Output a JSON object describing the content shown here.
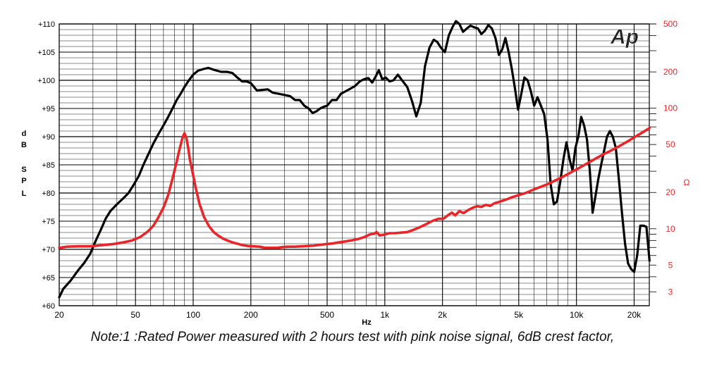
{
  "chart_data": {
    "type": "line",
    "x_scale": "log",
    "xlim": [
      20,
      24000
    ],
    "ylim": [
      60,
      110
    ],
    "y2_scale": "log",
    "y2lim": [
      2.3,
      500
    ],
    "x_ticks": [
      "20",
      "50",
      "100",
      "200",
      "500",
      "1k",
      "2k",
      "5k",
      "10k",
      "20k"
    ],
    "x_tick_values": [
      20,
      50,
      100,
      200,
      500,
      1000,
      2000,
      5000,
      10000,
      20000
    ],
    "y_ticks": [
      "+60",
      "+65",
      "+70",
      "+75",
      "+80",
      "+85",
      "+90",
      "+95",
      "+100",
      "+105",
      "+110"
    ],
    "y2_ticks": [
      "3",
      "5",
      "10",
      "20",
      "50",
      "100",
      "200",
      "500"
    ],
    "xlabel": "Hz",
    "ylabel": "dB SPL",
    "ylabel_letters": [
      "d",
      "B",
      "S",
      "P",
      "L"
    ],
    "y2label": "Ω",
    "logo": "Ap",
    "grid": true,
    "colors": {
      "spl": "#000000",
      "impedance": "#e8262a",
      "grid": "#000000",
      "right_axis_text": "#e8262a"
    },
    "series": [
      {
        "axis": "left",
        "color": "#000000",
        "points": [
          [
            20,
            61.5
          ],
          [
            21,
            63
          ],
          [
            23,
            64.5
          ],
          [
            25,
            66.2
          ],
          [
            27,
            67.6
          ],
          [
            29,
            69.2
          ],
          [
            31,
            71.5
          ],
          [
            33,
            73.5
          ],
          [
            35,
            75.5
          ],
          [
            37,
            76.8
          ],
          [
            40,
            78
          ],
          [
            43,
            79
          ],
          [
            46,
            80
          ],
          [
            49,
            81.5
          ],
          [
            52,
            83
          ],
          [
            55,
            85
          ],
          [
            58,
            86.7
          ],
          [
            62,
            88.8
          ],
          [
            66,
            90.5
          ],
          [
            70,
            92
          ],
          [
            74,
            93.5
          ],
          [
            78,
            95
          ],
          [
            82,
            96.5
          ],
          [
            86,
            97.6
          ],
          [
            90,
            98.8
          ],
          [
            95,
            100
          ],
          [
            100,
            101
          ],
          [
            106,
            101.7
          ],
          [
            113,
            102
          ],
          [
            120,
            102.2
          ],
          [
            130,
            101.8
          ],
          [
            140,
            101.5
          ],
          [
            150,
            101.5
          ],
          [
            160,
            101.3
          ],
          [
            170,
            100.5
          ],
          [
            180,
            99.8
          ],
          [
            190,
            99.8
          ],
          [
            200,
            99.5
          ],
          [
            215,
            98.2
          ],
          [
            230,
            98.3
          ],
          [
            245,
            98.4
          ],
          [
            260,
            97.8
          ],
          [
            280,
            97.6
          ],
          [
            300,
            97.4
          ],
          [
            320,
            97.2
          ],
          [
            340,
            96.5
          ],
          [
            360,
            96.5
          ],
          [
            380,
            95.5
          ],
          [
            400,
            95
          ],
          [
            420,
            94.2
          ],
          [
            440,
            94.5
          ],
          [
            460,
            95
          ],
          [
            480,
            95.3
          ],
          [
            500,
            95.5
          ],
          [
            530,
            96.5
          ],
          [
            560,
            96.5
          ],
          [
            590,
            97.6
          ],
          [
            620,
            98
          ],
          [
            660,
            98.5
          ],
          [
            700,
            99
          ],
          [
            740,
            99.8
          ],
          [
            780,
            100.2
          ],
          [
            820,
            100.4
          ],
          [
            860,
            99.6
          ],
          [
            900,
            100.8
          ],
          [
            930,
            101.8
          ],
          [
            970,
            100.2
          ],
          [
            1010,
            100.5
          ],
          [
            1060,
            99.8
          ],
          [
            1110,
            100
          ],
          [
            1170,
            101
          ],
          [
            1230,
            100
          ],
          [
            1310,
            98.8
          ],
          [
            1390,
            96.2
          ],
          [
            1460,
            93.6
          ],
          [
            1540,
            96
          ],
          [
            1620,
            102.5
          ],
          [
            1710,
            105.8
          ],
          [
            1800,
            107.2
          ],
          [
            1880,
            106.8
          ],
          [
            1960,
            105.8
          ],
          [
            2060,
            105
          ],
          [
            2160,
            108
          ],
          [
            2260,
            109.5
          ],
          [
            2350,
            110.5
          ],
          [
            2450,
            110
          ],
          [
            2560,
            108.6
          ],
          [
            2680,
            109.2
          ],
          [
            2800,
            109.7
          ],
          [
            2930,
            109.4
          ],
          [
            3060,
            109.2
          ],
          [
            3190,
            108.2
          ],
          [
            3330,
            108.8
          ],
          [
            3470,
            109.8
          ],
          [
            3620,
            109.2
          ],
          [
            3780,
            107.5
          ],
          [
            3940,
            104.5
          ],
          [
            4100,
            105.5
          ],
          [
            4260,
            107.5
          ],
          [
            4430,
            105
          ],
          [
            4600,
            102
          ],
          [
            4780,
            98.5
          ],
          [
            4960,
            94.8
          ],
          [
            5150,
            97.5
          ],
          [
            5350,
            100.5
          ],
          [
            5560,
            100
          ],
          [
            5790,
            98
          ],
          [
            6020,
            95.5
          ],
          [
            6260,
            97
          ],
          [
            6520,
            95.5
          ],
          [
            6790,
            94
          ],
          [
            7060,
            89.5
          ],
          [
            7340,
            81.5
          ],
          [
            7620,
            78
          ],
          [
            7920,
            78.5
          ],
          [
            8230,
            82
          ],
          [
            8550,
            86
          ],
          [
            8870,
            89
          ],
          [
            9210,
            86
          ],
          [
            9540,
            84
          ],
          [
            9880,
            88
          ],
          [
            10230,
            90
          ],
          [
            10590,
            93.5
          ],
          [
            10960,
            92
          ],
          [
            11350,
            89.5
          ],
          [
            11740,
            84
          ],
          [
            12150,
            76.5
          ],
          [
            12570,
            79.5
          ],
          [
            13010,
            82.5
          ],
          [
            13460,
            85
          ],
          [
            13940,
            87.5
          ],
          [
            14440,
            90
          ],
          [
            14950,
            91
          ],
          [
            15480,
            90
          ],
          [
            16050,
            88
          ],
          [
            16650,
            82.5
          ],
          [
            17280,
            76.5
          ],
          [
            17930,
            71
          ],
          [
            18600,
            67.5
          ],
          [
            19290,
            66.5
          ],
          [
            20010,
            66
          ],
          [
            20760,
            69
          ],
          [
            21540,
            74.2
          ],
          [
            22350,
            74.2
          ],
          [
            23190,
            74
          ],
          [
            24060,
            68
          ]
        ]
      },
      {
        "axis": "right",
        "color": "#e8262a",
        "points": [
          [
            20,
            6.95
          ],
          [
            22,
            7.1
          ],
          [
            25,
            7.15
          ],
          [
            29,
            7.15
          ],
          [
            33,
            7.3
          ],
          [
            38,
            7.45
          ],
          [
            43,
            7.7
          ],
          [
            48,
            8
          ],
          [
            53,
            8.55
          ],
          [
            58,
            9.5
          ],
          [
            62,
            10.6
          ],
          [
            66,
            12.5
          ],
          [
            70,
            15
          ],
          [
            74,
            19
          ],
          [
            78,
            26
          ],
          [
            82,
            36
          ],
          [
            85,
            46
          ],
          [
            88,
            57
          ],
          [
            90,
            62
          ],
          [
            92,
            57
          ],
          [
            94,
            48
          ],
          [
            96,
            38
          ],
          [
            99,
            30
          ],
          [
            103,
            22
          ],
          [
            108,
            16
          ],
          [
            114,
            12.5
          ],
          [
            121,
            10.5
          ],
          [
            128,
            9.4
          ],
          [
            135,
            8.8
          ],
          [
            143,
            8.3
          ],
          [
            152,
            7.95
          ],
          [
            161,
            7.7
          ],
          [
            171,
            7.5
          ],
          [
            182,
            7.3
          ],
          [
            194,
            7.2
          ],
          [
            207,
            7.15
          ],
          [
            222,
            7.1
          ],
          [
            237,
            6.95
          ],
          [
            255,
            6.95
          ],
          [
            274,
            6.95
          ],
          [
            294,
            7.05
          ],
          [
            316,
            7.1
          ],
          [
            341,
            7.1
          ],
          [
            367,
            7.15
          ],
          [
            394,
            7.2
          ],
          [
            425,
            7.25
          ],
          [
            458,
            7.35
          ],
          [
            493,
            7.45
          ],
          [
            532,
            7.55
          ],
          [
            574,
            7.7
          ],
          [
            619,
            7.85
          ],
          [
            668,
            8
          ],
          [
            721,
            8.2
          ],
          [
            778,
            8.5
          ],
          [
            840,
            9
          ],
          [
            880,
            9.1
          ],
          [
            906,
            9.4
          ],
          [
            940,
            8.8
          ],
          [
            980,
            8.9
          ],
          [
            1060,
            9.2
          ],
          [
            1130,
            9.2
          ],
          [
            1220,
            9.3
          ],
          [
            1310,
            9.4
          ],
          [
            1410,
            9.8
          ],
          [
            1520,
            10.3
          ],
          [
            1640,
            10.9
          ],
          [
            1770,
            11.6
          ],
          [
            1910,
            12.1
          ],
          [
            2020,
            12.1
          ],
          [
            2130,
            12.9
          ],
          [
            2240,
            13.6
          ],
          [
            2330,
            12.9
          ],
          [
            2450,
            14
          ],
          [
            2580,
            13.5
          ],
          [
            2720,
            14.3
          ],
          [
            2870,
            14.9
          ],
          [
            3030,
            15.4
          ],
          [
            3190,
            15.2
          ],
          [
            3370,
            15.8
          ],
          [
            3550,
            15.5
          ],
          [
            3740,
            16.3
          ],
          [
            3950,
            16.7
          ],
          [
            4160,
            17.2
          ],
          [
            4390,
            17.7
          ],
          [
            4630,
            18.3
          ],
          [
            4890,
            18.8
          ],
          [
            5150,
            19.3
          ],
          [
            5430,
            19.8
          ],
          [
            5720,
            20.5
          ],
          [
            6040,
            21.3
          ],
          [
            6370,
            22
          ],
          [
            6720,
            22.7
          ],
          [
            7090,
            23.5
          ],
          [
            7480,
            24.5
          ],
          [
            7880,
            25.5
          ],
          [
            8310,
            26.5
          ],
          [
            8770,
            27.8
          ],
          [
            9250,
            29
          ],
          [
            9750,
            30.4
          ],
          [
            10280,
            31.8
          ],
          [
            10850,
            33.4
          ],
          [
            11440,
            35
          ],
          [
            12070,
            36.8
          ],
          [
            12730,
            38.6
          ],
          [
            13420,
            40.4
          ],
          [
            14150,
            42.2
          ],
          [
            14930,
            44
          ],
          [
            15750,
            46
          ],
          [
            16610,
            48.2
          ],
          [
            17520,
            50.5
          ],
          [
            18480,
            53
          ],
          [
            19490,
            55.8
          ],
          [
            20560,
            58.8
          ],
          [
            21680,
            61.8
          ],
          [
            22870,
            65
          ],
          [
            24060,
            68.5
          ]
        ]
      }
    ]
  },
  "note": "Note:1 :Rated Power measured with 2 hours test with pink noise signal, 6dB crest factor,"
}
